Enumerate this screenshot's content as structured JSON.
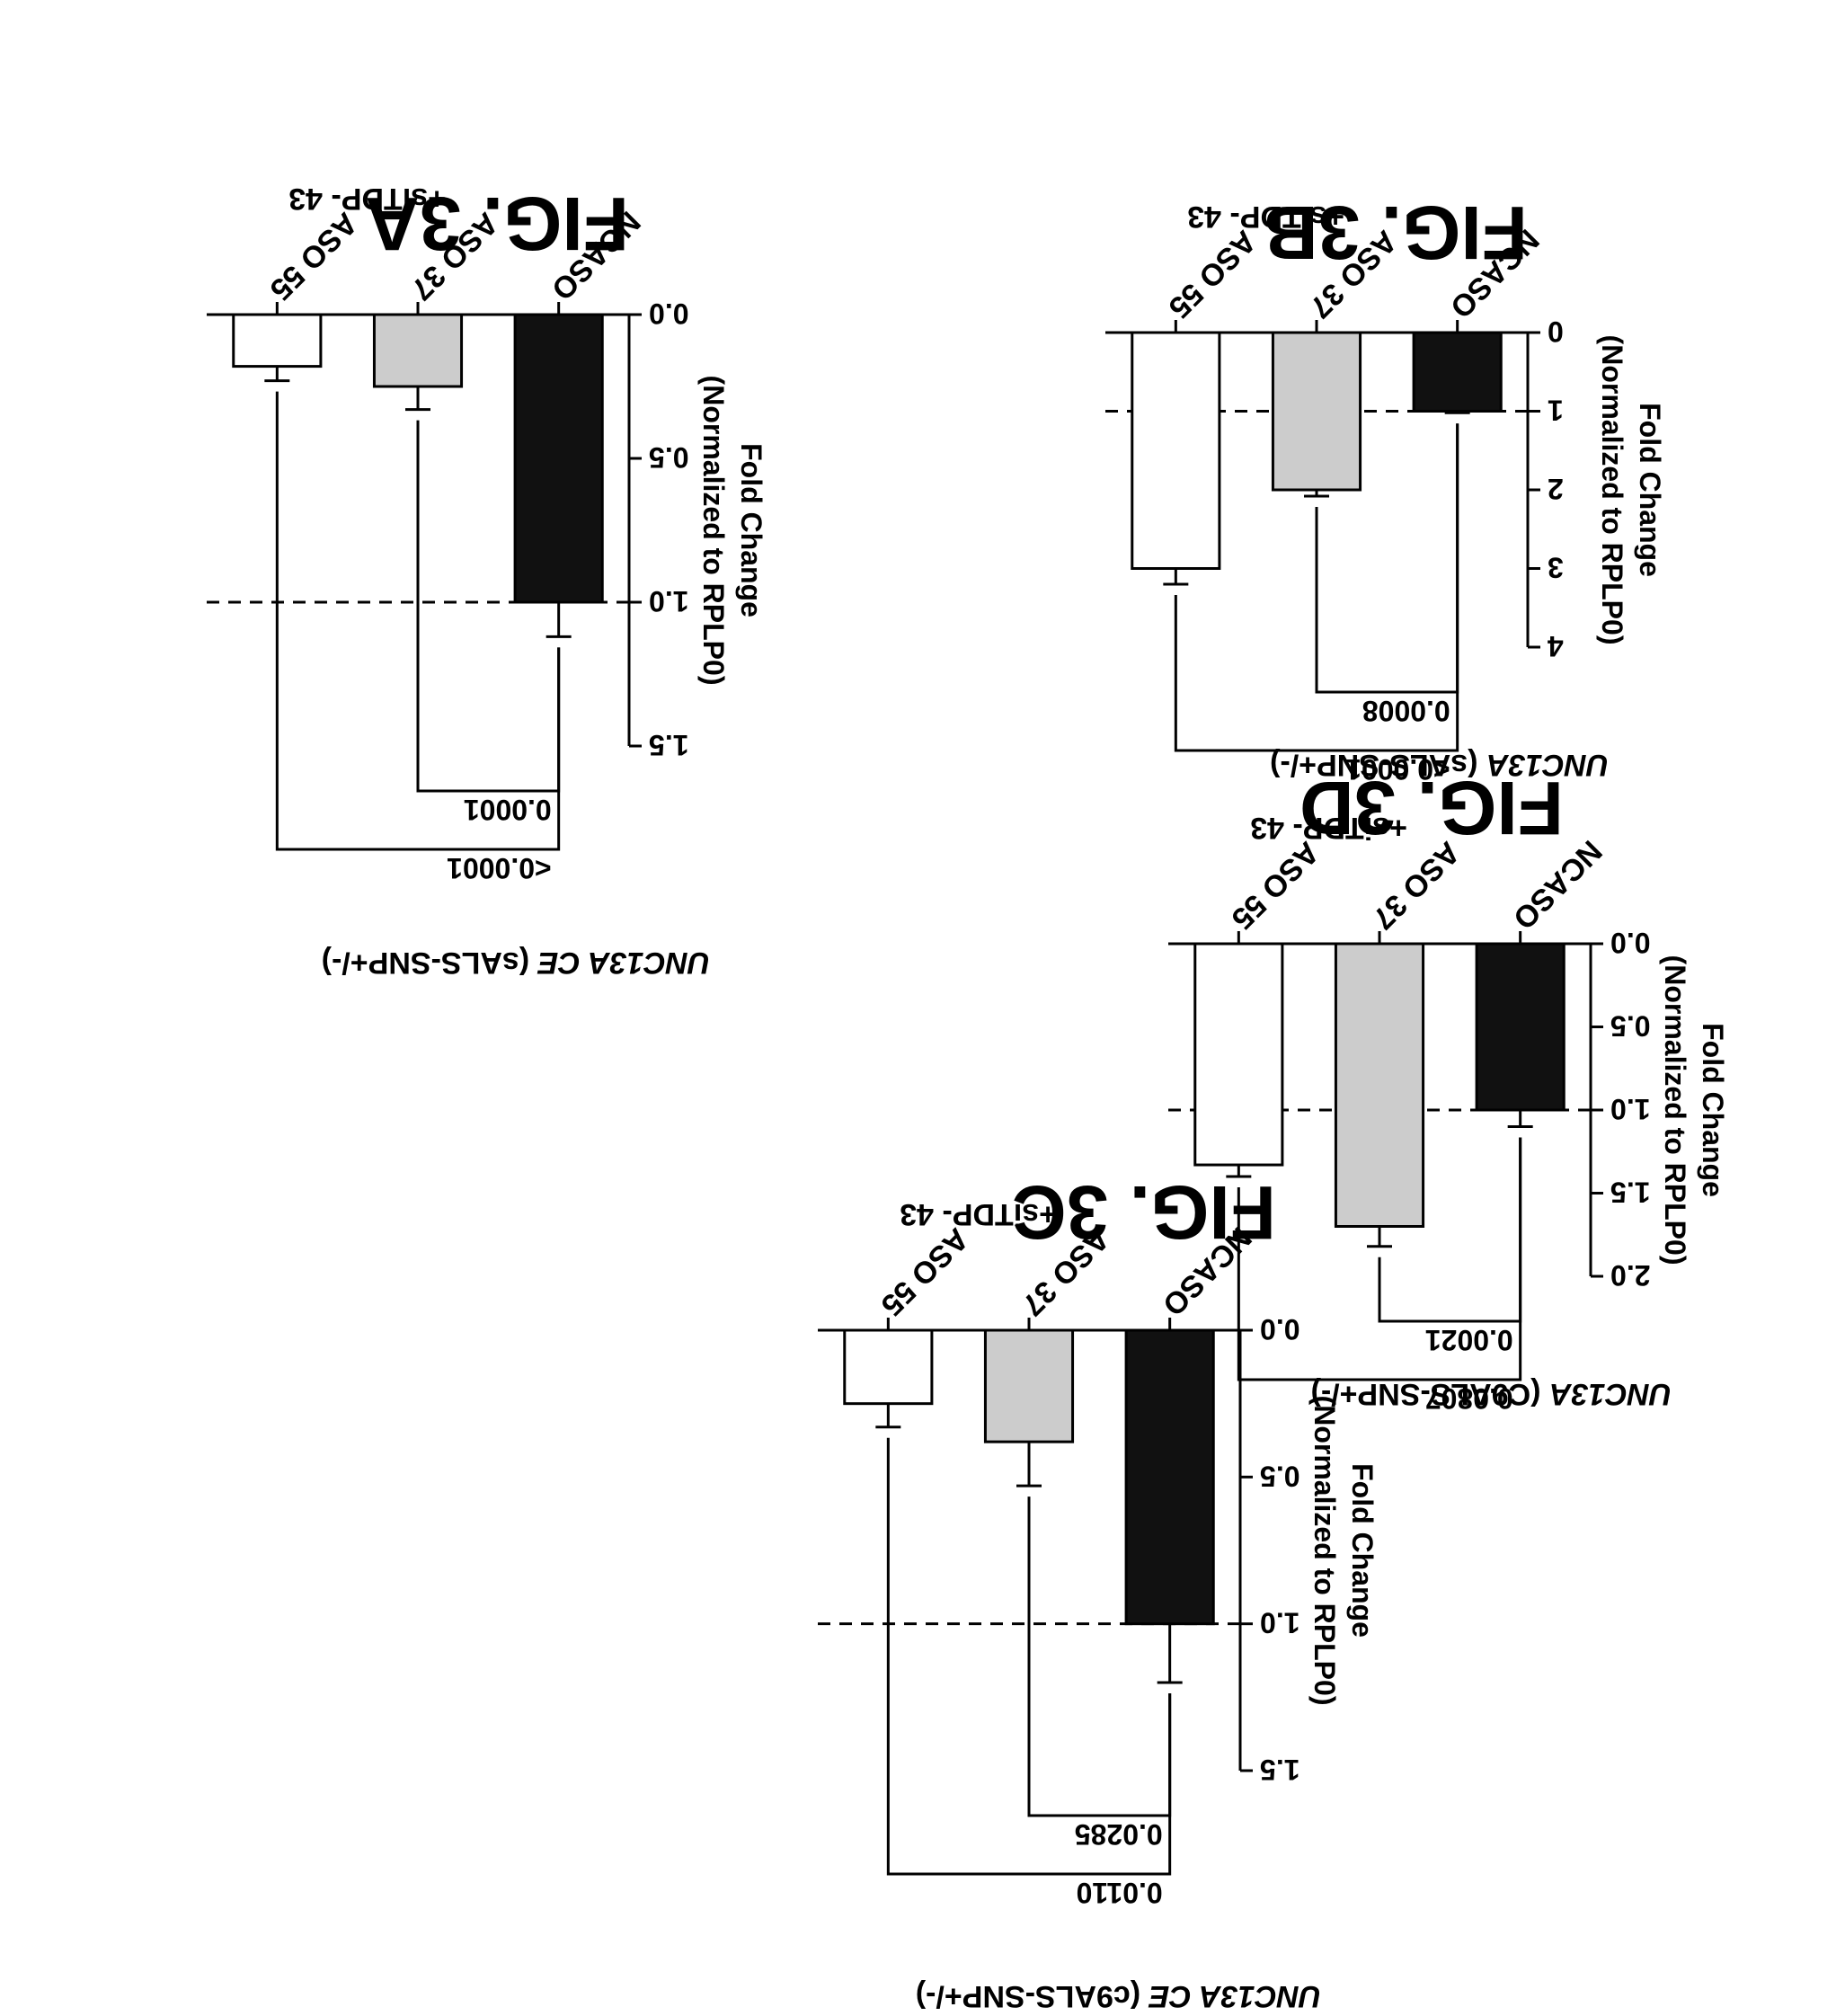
{
  "chart_data": [
    {
      "id": "3A",
      "type": "bar",
      "fig_label": "FIG. 3A",
      "title_italic": "UNC13A CE",
      "title_rest": " (sALS-SNP+/-)",
      "ylabel_line1": "Fold Change",
      "ylabel_line2": "(Normalized to RPLP0)",
      "categories": [
        "NCASO",
        "ASO 37",
        "ASO 55"
      ],
      "group_label": "+siTDP- 43",
      "values": [
        1.0,
        0.25,
        0.18
      ],
      "errors": [
        0.12,
        0.08,
        0.05
      ],
      "fills": [
        "#111111",
        "#cccccc",
        "#ffffff"
      ],
      "yticks": [
        0.0,
        0.5,
        1.0,
        1.5
      ],
      "tick_labels": [
        "0.0",
        "0.5",
        "1.0",
        "1.5"
      ],
      "ylim": [
        0,
        1.5
      ],
      "ref_line": 1.0,
      "brackets": [
        {
          "from": 0,
          "to": 1,
          "label": "0.0001"
        },
        {
          "from": 0,
          "to": 2,
          "label": "<0.0001"
        }
      ]
    },
    {
      "id": "3B",
      "type": "bar",
      "fig_label": "FIG. 3B",
      "title_italic": "UNC13A",
      "title_rest": " (sALS-SNP+/-)",
      "ylabel_line1": "Fold Change",
      "ylabel_line2": "(Normalized to RPLP0)",
      "categories": [
        "NCASO",
        "ASO 37",
        "ASO 55"
      ],
      "group_label": "+siTDP- 43",
      "values": [
        1.0,
        2.0,
        3.0
      ],
      "errors": [
        0.02,
        0.08,
        0.2
      ],
      "fills": [
        "#111111",
        "#cccccc",
        "#ffffff"
      ],
      "yticks": [
        0,
        1,
        2,
        3,
        4
      ],
      "tick_labels": [
        "0",
        "1",
        "2",
        "3",
        "4"
      ],
      "ylim": [
        0,
        4
      ],
      "ref_line": 1.0,
      "brackets": [
        {
          "from": 0,
          "to": 1,
          "label": "0.0008"
        },
        {
          "from": 0,
          "to": 2,
          "label": "<0.0001"
        }
      ]
    },
    {
      "id": "3C",
      "type": "bar",
      "fig_label": "FIG. 3C",
      "title_italic": "UNC13A CE",
      "title_rest": " (c9ALS-SNP+/-)",
      "ylabel_line1": "Fold Change",
      "ylabel_line2": "(Normalized to RPLP0)",
      "categories": [
        "NCASO",
        "ASO 37",
        "ASO 55"
      ],
      "group_label": "+siTDP- 43",
      "values": [
        1.0,
        0.38,
        0.25
      ],
      "errors": [
        0.2,
        0.15,
        0.08
      ],
      "fills": [
        "#111111",
        "#cccccc",
        "#ffffff"
      ],
      "yticks": [
        0.0,
        0.5,
        1.0,
        1.5
      ],
      "tick_labels": [
        "0.0",
        "0.5",
        "1.0",
        "1.5"
      ],
      "ylim": [
        0,
        1.5
      ],
      "ref_line": 1.0,
      "brackets": [
        {
          "from": 0,
          "to": 1,
          "label": "0.0285"
        },
        {
          "from": 0,
          "to": 2,
          "label": "0.0110"
        }
      ]
    },
    {
      "id": "3D",
      "type": "bar",
      "fig_label": "FIG. 3D",
      "title_italic": "UNC13A",
      "title_rest": " (C9ALS-SNP+/-)",
      "ylabel_line1": "Fold Change",
      "ylabel_line2": "(Normalized to RPLP0)",
      "categories": [
        "NCASO",
        "ASO 37",
        "ASO 55"
      ],
      "group_label": "+siTDP- 43",
      "values": [
        1.0,
        1.7,
        1.33
      ],
      "errors": [
        0.1,
        0.12,
        0.07
      ],
      "fills": [
        "#111111",
        "#cccccc",
        "#ffffff"
      ],
      "yticks": [
        0.0,
        0.5,
        1.0,
        1.5,
        2.0
      ],
      "tick_labels": [
        "0.0",
        "0.5",
        "1.0",
        "1.5",
        "2.0"
      ],
      "ylim": [
        0,
        2.0
      ],
      "ref_line": 1.0,
      "brackets": [
        {
          "from": 0,
          "to": 1,
          "label": "0.0021"
        },
        {
          "from": 0,
          "to": 2,
          "label": "0.0807"
        }
      ]
    }
  ]
}
